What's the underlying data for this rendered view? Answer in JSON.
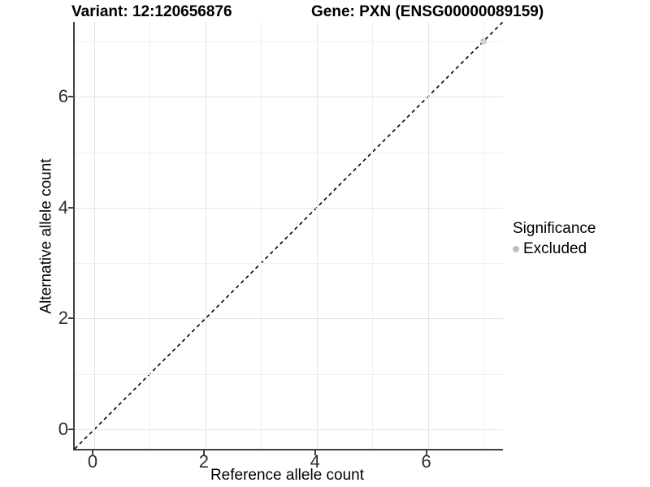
{
  "titles": {
    "variant": "Variant: 12:120656876",
    "gene": "Gene: PXN (ENSG00000089159)"
  },
  "axes": {
    "x": {
      "label": "Reference allele count"
    },
    "y": {
      "label": "Alternative allele count"
    }
  },
  "legend": {
    "title": "Significance",
    "items": [
      {
        "label": "Excluded",
        "color": "#bebebe"
      }
    ]
  },
  "colors": {
    "background": "#ffffff",
    "axis_line": "#404040",
    "major_grid": "#e4e4e4",
    "minor_grid": "#f0f0f0",
    "tick_text": "#2e2e2e",
    "point": "#bebebe",
    "identity_line": "#000000"
  },
  "chart_data": {
    "type": "scatter",
    "title": "Variant: 12:120656876  |  Gene: PXN (ENSG00000089159)",
    "xlabel": "Reference allele count",
    "ylabel": "Alternative allele count",
    "xlim": [
      -0.35,
      7.35
    ],
    "ylim": [
      -0.35,
      7.35
    ],
    "x_ticks": [
      0,
      2,
      4,
      6
    ],
    "y_ticks": [
      0,
      2,
      4,
      6
    ],
    "x_minor_ticks": [
      1,
      3,
      5,
      7
    ],
    "y_minor_ticks": [
      1,
      3,
      5,
      7
    ],
    "grid": "major+minor",
    "legend_position": "right-middle",
    "series": [
      {
        "name": "Excluded",
        "color": "#bebebe",
        "marker": "circle",
        "points": [
          {
            "x": 7,
            "y": 7
          }
        ]
      }
    ],
    "identity_line": {
      "equation": "y = x",
      "style": "dashed",
      "color": "#000000",
      "from": [
        -0.35,
        -0.35
      ],
      "to": [
        7.35,
        7.35
      ]
    }
  }
}
